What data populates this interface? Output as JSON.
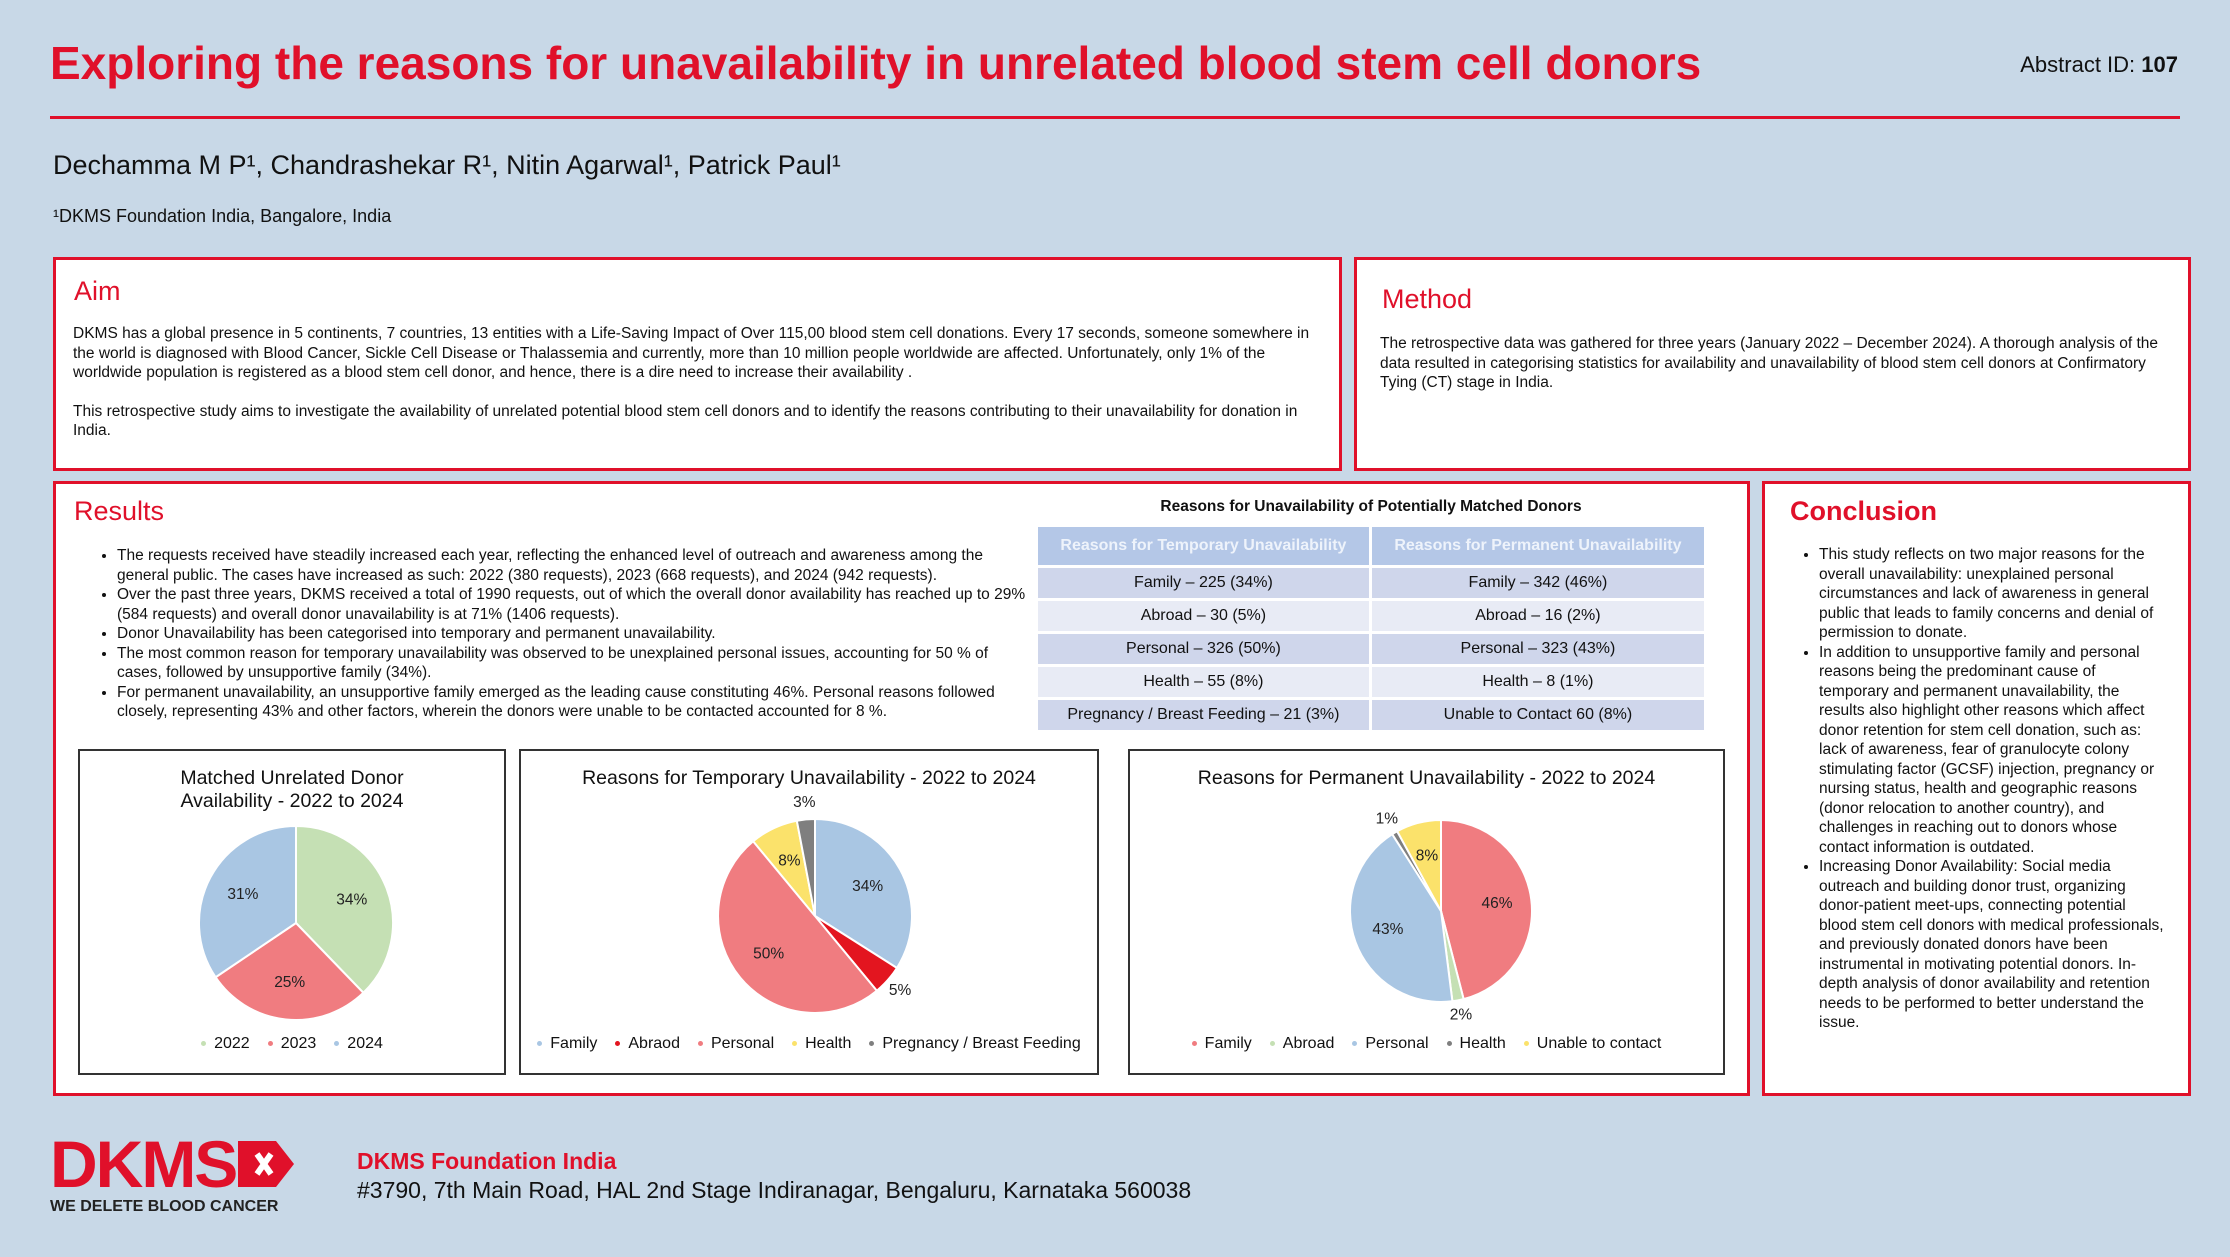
{
  "header": {
    "title": "Exploring the reasons for unavailability in unrelated blood stem cell donors",
    "abstract_label": "Abstract ID:",
    "abstract_id": "107"
  },
  "authors": "Dechamma M P¹, Chandrashekar R¹, Nitin Agarwal¹, Patrick Paul¹",
  "affiliation": "¹DKMS Foundation India, Bangalore, India",
  "aim": {
    "heading": "Aim",
    "paragraphs": [
      "DKMS has a global presence in 5 continents, 7 countries, 13 entities with a Life-Saving Impact of Over 115,00 blood stem cell donations. Every 17 seconds, someone somewhere in the world is diagnosed with Blood Cancer,  Sickle Cell Disease or Thalassemia and currently, more than 10 million people worldwide are affected. Unfortunately, only 1% of the worldwide population is registered as a blood stem cell donor, and hence, there is a dire need to increase their availability .",
      "This retrospective study aims to investigate the availability of unrelated potential blood stem cell donors and to identify the reasons contributing to their unavailability for donation in India."
    ]
  },
  "method": {
    "heading": "Method",
    "paragraphs": [
      "The retrospective data was gathered for three years (January 2022 – December 2024). A thorough analysis of the data resulted in categorising statistics for availability and unavailability of blood stem cell donors at Confirmatory Tying (CT) stage in India."
    ]
  },
  "results": {
    "heading": "Results",
    "bullets": [
      "The requests received have steadily increased each year, reflecting the enhanced level of outreach and awareness among the general public. The cases have increased as such: 2022 (380 requests), 2023 (668 requests), and 2024 (942 requests).",
      "Over the past three years, DKMS received a total of 1990 requests, out of which the overall donor availability has reached up to 29% (584 requests) and overall donor unavailability is at 71% (1406 requests).",
      "Donor Unavailability has been categorised into temporary and permanent unavailability.",
      "The most common reason for temporary unavailability was observed to be unexplained personal issues, accounting for 50 % of cases, followed by unsupportive family (34%).",
      "For permanent unavailability, an unsupportive family emerged as the leading cause constituting 46%. Personal reasons followed closely, representing 43% and other factors, wherein the donors were unable to be contacted accounted for 8 %."
    ]
  },
  "table": {
    "title": "Reasons for Unavailability of Potentially Matched Donors",
    "columns": [
      "Reasons for Temporary Unavailability",
      "Reasons for Permanent Unavailability"
    ],
    "rows": [
      [
        "Family – 225 (34%)",
        "Family – 342 (46%)"
      ],
      [
        "Abroad – 30 (5%)",
        "Abroad – 16 (2%)"
      ],
      [
        "Personal – 326 (50%)",
        "Personal – 323 (43%)"
      ],
      [
        "Health – 55 (8%)",
        "Health – 8 (1%)"
      ],
      [
        "Pregnancy / Breast Feeding – 21 (3%)",
        "Unable to Contact 60 (8%)"
      ]
    ]
  },
  "conclusion": {
    "heading": "Conclusion",
    "bullets": [
      "This study reflects on two major reasons for the overall unavailability: unexplained personal circumstances and lack of awareness in general public that leads to family concerns and denial of permission to donate.",
      "In addition to unsupportive family and personal reasons being the predominant cause of temporary and permanent unavailability, the results also highlight other reasons which affect donor retention for stem cell donation, such as: lack of awareness, fear of granulocyte colony stimulating factor (GCSF) injection, pregnancy or nursing status, health and geographic reasons (donor relocation to another country), and challenges in reaching out to donors whose contact information is outdated.",
      "Increasing Donor Availability: Social media outreach and building donor trust, organizing donor-patient meet-ups, connecting potential blood stem cell donors with medical professionals, and previously donated donors have been instrumental in motivating potential donors. In-depth analysis of donor availability and retention needs to be performed to better understand the issue."
    ]
  },
  "footer": {
    "logo": "DKMS",
    "tagline": "WE DELETE BLOOD CANCER",
    "org": "DKMS Foundation India",
    "address": "#3790, 7th Main Road, HAL 2nd Stage Indiranagar, Bengaluru, Karnataka 560038"
  },
  "chart_data": [
    {
      "type": "pie",
      "title": "Matched Unrelated Donor Availability - 2022 to 2024",
      "categories": [
        "2022",
        "2023",
        "2024"
      ],
      "values": [
        34,
        25,
        31
      ],
      "value_labels": [
        "34%",
        "25%",
        "31%"
      ],
      "colors": [
        "#c5e0b4",
        "#f07c80",
        "#a9c6e3"
      ]
    },
    {
      "type": "pie",
      "title": "Reasons for Temporary Unavailability - 2022 to 2024",
      "categories": [
        "Family",
        "Abraod",
        "Personal",
        "Health",
        "Pregnancy / Breast Feeding"
      ],
      "values": [
        34,
        5,
        50,
        8,
        3
      ],
      "value_labels": [
        "34%",
        "5%",
        "50%",
        "8%",
        "3%"
      ],
      "colors": [
        "#a9c6e3",
        "#e3151f",
        "#f07c80",
        "#fbe26b",
        "#7f7f7f"
      ]
    },
    {
      "type": "pie",
      "title": "Reasons for Permanent Unavailability - 2022 to 2024",
      "categories": [
        "Family",
        "Abroad",
        "Personal",
        "Health",
        "Unable to contact"
      ],
      "values": [
        46,
        2,
        43,
        1,
        8
      ],
      "value_labels": [
        "46%",
        "2%",
        "43%",
        "1%",
        "8%"
      ],
      "colors": [
        "#f07c80",
        "#c5e0b4",
        "#a9c6e3",
        "#7f7f7f",
        "#fbe26b"
      ]
    }
  ]
}
